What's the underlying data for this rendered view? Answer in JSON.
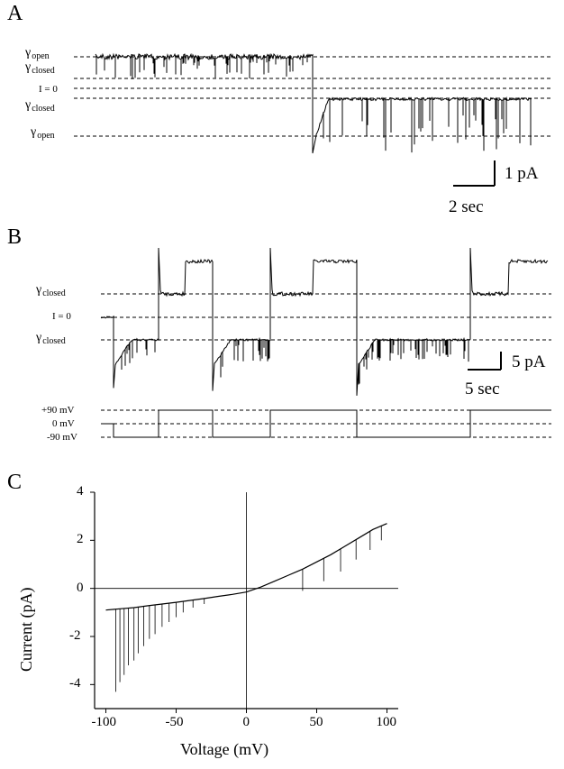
{
  "panels": {
    "a": {
      "letter": "A",
      "labels": {
        "gamma_open_top": {
          "symbol": "γ",
          "sub": "open"
        },
        "gamma_closed_top": {
          "symbol": "γ",
          "sub": "closed"
        },
        "i_zero": "I = 0",
        "gamma_closed_bottom": {
          "symbol": "γ",
          "sub": "closed"
        },
        "gamma_open_bottom": {
          "symbol": "γ",
          "sub": "open"
        }
      },
      "scalebar": {
        "current": "1 pA",
        "time": "2 sec"
      }
    },
    "b": {
      "letter": "B",
      "labels": {
        "gamma_closed_top": {
          "symbol": "γ",
          "sub": "closed"
        },
        "i_zero": "I = 0",
        "gamma_closed_bottom": {
          "symbol": "γ",
          "sub": "closed"
        }
      },
      "scalebar": {
        "current": "5 pA",
        "time": "5 sec"
      },
      "voltage_labels": {
        "plus90": "+90 mV",
        "zero": "0 mV",
        "minus90": "-90 mV"
      }
    },
    "c": {
      "letter": "C"
    }
  },
  "chart_data": {
    "type": "line",
    "xlabel": "Voltage (mV)",
    "ylabel": "Current (pA)",
    "xlim": [
      -108,
      108
    ],
    "ylim": [
      -5,
      4
    ],
    "xticks": [
      -100,
      -50,
      0,
      50,
      100
    ],
    "yticks": [
      -4,
      -2,
      0,
      2,
      4
    ],
    "grid": false,
    "series": [
      {
        "x": [
          -100,
          -90,
          -80,
          -70,
          -60,
          -50,
          -40,
          -30,
          -20,
          -10,
          0,
          10,
          20,
          30,
          40,
          50,
          60,
          70,
          80,
          90,
          100
        ],
        "y": [
          -0.9,
          -0.85,
          -0.8,
          -0.72,
          -0.65,
          -0.58,
          -0.5,
          -0.42,
          -0.33,
          -0.25,
          -0.15,
          0.05,
          0.3,
          0.55,
          0.8,
          1.1,
          1.4,
          1.75,
          2.1,
          2.45,
          2.7
        ]
      }
    ],
    "closing_events": [
      {
        "x": -93,
        "y": -4.3
      },
      {
        "x": -90,
        "y": -3.9
      },
      {
        "x": -87,
        "y": -3.6
      },
      {
        "x": -84,
        "y": -3.2
      },
      {
        "x": -80,
        "y": -3.0
      },
      {
        "x": -77,
        "y": -2.7
      },
      {
        "x": -73,
        "y": -2.4
      },
      {
        "x": -69,
        "y": -2.1
      },
      {
        "x": -65,
        "y": -1.9
      },
      {
        "x": -60,
        "y": -1.6
      },
      {
        "x": -55,
        "y": -1.4
      },
      {
        "x": -50,
        "y": -1.2
      },
      {
        "x": -45,
        "y": -1.0
      },
      {
        "x": -38,
        "y": -0.8
      },
      {
        "x": -30,
        "y": -0.65
      },
      {
        "x": 40,
        "y": -0.1
      },
      {
        "x": 55,
        "y": 0.3
      },
      {
        "x": 67,
        "y": 0.7
      },
      {
        "x": 78,
        "y": 1.2
      },
      {
        "x": 88,
        "y": 1.6
      },
      {
        "x": 96,
        "y": 2.0
      }
    ]
  }
}
